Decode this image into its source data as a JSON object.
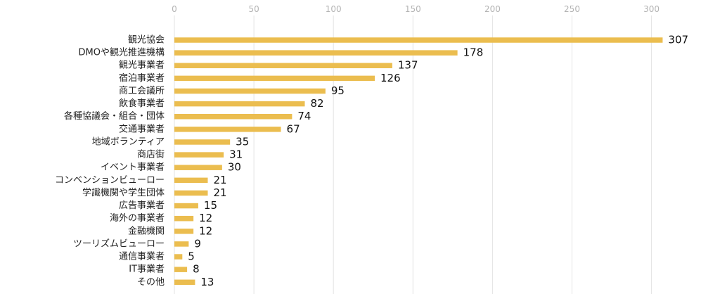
{
  "chart_data": {
    "type": "bar",
    "orientation": "horizontal",
    "title": "",
    "xlabel": "",
    "ylabel": "",
    "xlim": [
      0,
      310
    ],
    "xticks": [
      0,
      50,
      100,
      150,
      200,
      250,
      300
    ],
    "grid": true,
    "bar_color": "#ebbd4f",
    "categories": [
      "観光協会",
      "DMOや観光推進機構",
      "観光事業者",
      "宿泊事業者",
      "商工会議所",
      "飲食事業者",
      "各種協議会・組合・団体",
      "交通事業者",
      "地域ボランティア",
      "商店街",
      "イベント事業者",
      "コンベンションビューロー",
      "学識機関や学生団体",
      "広告事業者",
      "海外の事業者",
      "金融機関",
      "ツーリズムビューロー",
      "通信事業者",
      "IT事業者",
      "その他"
    ],
    "values": [
      307,
      178,
      137,
      126,
      95,
      82,
      74,
      67,
      35,
      31,
      30,
      21,
      21,
      15,
      12,
      12,
      9,
      5,
      8,
      13
    ]
  }
}
